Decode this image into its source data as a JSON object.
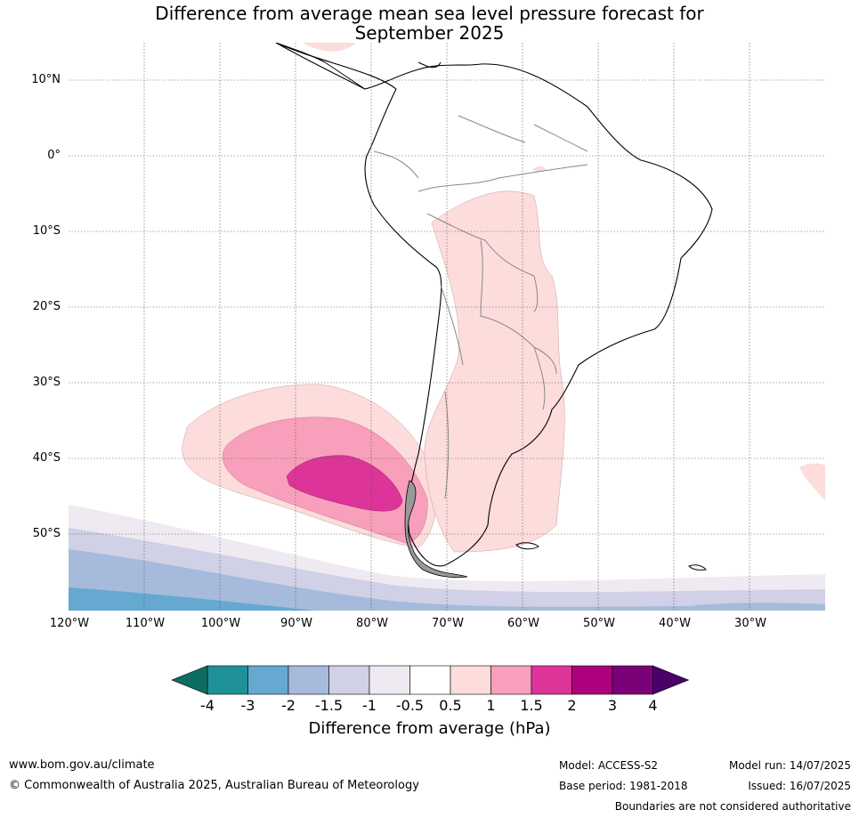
{
  "title_line1": "Difference from average mean sea level pressure forecast for",
  "title_line2": "September 2025",
  "lat_labels": [
    "10°N",
    "0°",
    "10°S",
    "20°S",
    "30°S",
    "40°S",
    "50°S"
  ],
  "lon_labels": [
    "120°W",
    "110°W",
    "100°W",
    "90°W",
    "80°W",
    "70°W",
    "60°W",
    "50°W",
    "40°W",
    "30°W"
  ],
  "colorbar": {
    "title": "Difference from average (hPa)",
    "ticks": [
      "-4",
      "-3",
      "-2",
      "-1.5",
      "-1",
      "-0.5",
      "0.5",
      "1",
      "1.5",
      "2",
      "3",
      "4"
    ],
    "colors": [
      "#1f9199",
      "#65a9d0",
      "#a6badb",
      "#d0d0e6",
      "#efeaf2",
      "#ffffff",
      "#fddcdc",
      "#f8a0bb",
      "#dc3498",
      "#ae017e",
      "#7a0177"
    ],
    "under_color": "#0c6e60",
    "over_color": "#4a016a"
  },
  "footer": {
    "website": "www.bom.gov.au/climate",
    "copyright": "© Commonwealth of Australia 2025, Australian Bureau of Meteorology",
    "model": "Model: ACCESS-S2",
    "base_period": "Base period: 1981-2018",
    "model_run": "Model run: 14/07/2025",
    "issued": "Issued: 16/07/2025",
    "disclaimer": "Boundaries are not considered authoritative"
  }
}
